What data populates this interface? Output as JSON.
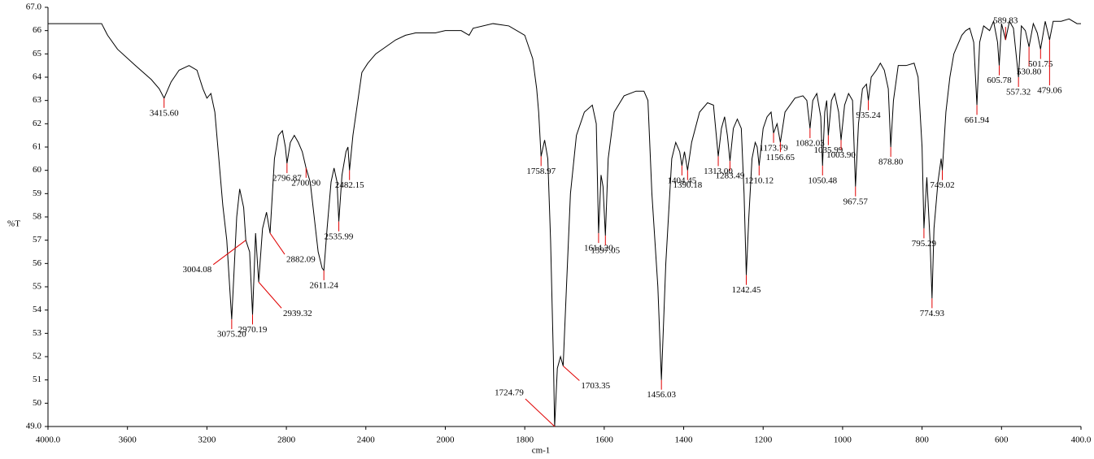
{
  "chart_data": {
    "type": "line",
    "xlabel": "cm-1",
    "ylabel": "%T",
    "color": "#000000",
    "peak_color": "#e00000",
    "xlim": [
      4000,
      400
    ],
    "ylim": [
      49,
      67
    ],
    "xticks": [
      {
        "value": 4000,
        "label": "4000.0"
      },
      3600,
      3200,
      2800,
      2400,
      2000,
      1800,
      1600,
      1400,
      1200,
      1000,
      800,
      600,
      {
        "value": 400,
        "label": "400.0"
      }
    ],
    "yticks": [
      {
        "value": 49,
        "label": "49.0"
      },
      50,
      51,
      52,
      53,
      54,
      55,
      56,
      57,
      58,
      59,
      60,
      61,
      62,
      63,
      64,
      65,
      66,
      {
        "value": 67,
        "label": "67.0"
      }
    ],
    "x": [
      4000,
      3730,
      3700,
      3650,
      3560,
      3480,
      3440,
      3415.6,
      3380,
      3340,
      3290,
      3250,
      3220,
      3200,
      3180,
      3160,
      3140,
      3120,
      3100,
      3075.2,
      3050,
      3035,
      3015,
      3004.08,
      2985,
      2970.19,
      2955,
      2939.32,
      2920,
      2900,
      2882.09,
      2860,
      2840,
      2820,
      2805,
      2796.87,
      2780,
      2760,
      2740,
      2720,
      2700.9,
      2680,
      2660,
      2640,
      2620,
      2611.24,
      2595,
      2575,
      2560,
      2545,
      2535.99,
      2520,
      2500,
      2490,
      2482.15,
      2465,
      2440,
      2420,
      2390,
      2350,
      2300,
      2250,
      2200,
      2150,
      2100,
      2050,
      2000,
      1960,
      1940,
      1930,
      1880,
      1840,
      1800,
      1780,
      1770,
      1765,
      1758.97,
      1750,
      1742,
      1735,
      1728,
      1724.79,
      1718,
      1710,
      1703.35,
      1695,
      1685,
      1670,
      1650,
      1630,
      1620,
      1614.2,
      1608,
      1603,
      1597.05,
      1590,
      1575,
      1550,
      1520,
      1500,
      1490,
      1480,
      1465,
      1456.03,
      1445,
      1430,
      1420,
      1410,
      1404.45,
      1398,
      1390.18,
      1380,
      1360,
      1340,
      1325,
      1313,
      1305,
      1297,
      1290,
      1283.49,
      1275,
      1265,
      1255,
      1248,
      1242.45,
      1236,
      1228,
      1220,
      1215,
      1210.12,
      1200,
      1190,
      1180,
      1173.79,
      1165,
      1156.65,
      1145,
      1120,
      1100,
      1090,
      1082.03,
      1075,
      1065,
      1055,
      1050.48,
      1045,
      1040,
      1035.99,
      1028,
      1020,
      1010,
      1003.9,
      995,
      985,
      975,
      967.57,
      960,
      950,
      940,
      935.24,
      928,
      915,
      905,
      895,
      885,
      878.8,
      872,
      860,
      840,
      820,
      810,
      800,
      795.29,
      788,
      780,
      774.93,
      770,
      760,
      752,
      749.02,
      740,
      730,
      720,
      700,
      690,
      680,
      670,
      661.94,
      655,
      645,
      630,
      620,
      610,
      605.78,
      600,
      589.83,
      580,
      570,
      557.32,
      550,
      540,
      530.8,
      520,
      510,
      501.75,
      490,
      479.06,
      470,
      450,
      430,
      410,
      400
    ],
    "values": [
      66.3,
      66.3,
      65.8,
      65.2,
      64.5,
      63.9,
      63.5,
      63.1,
      63.8,
      64.3,
      64.5,
      64.3,
      63.5,
      63.1,
      63.3,
      62.5,
      60.5,
      58.5,
      57,
      53.6,
      58,
      59.2,
      58.4,
      57,
      56.5,
      53.8,
      57.3,
      55.2,
      57.5,
      58.2,
      57.3,
      60.5,
      61.5,
      61.7,
      61,
      60.3,
      61.2,
      61.5,
      61.2,
      60.8,
      60.1,
      59.5,
      58,
      56.5,
      55.8,
      55.7,
      57.5,
      59.5,
      60.1,
      59.5,
      57.8,
      59.8,
      60.8,
      61,
      60,
      61.5,
      63,
      64.2,
      64.6,
      65,
      65.3,
      65.6,
      65.8,
      65.9,
      65.9,
      65.9,
      66,
      66,
      65.8,
      66.1,
      66.3,
      66.2,
      65.8,
      64.8,
      63.5,
      62.5,
      60.6,
      61.3,
      60.5,
      57,
      52,
      49,
      51.5,
      52,
      51.6,
      55,
      59,
      61.5,
      62.5,
      62.8,
      62,
      57.3,
      59.8,
      59.3,
      57.2,
      60.5,
      62.5,
      63.2,
      63.4,
      63.4,
      63,
      59,
      55,
      51,
      56,
      60.5,
      61.2,
      60.8,
      60.2,
      60.8,
      60,
      61.2,
      62.5,
      62.9,
      62.8,
      60.6,
      61.8,
      62.3,
      61.5,
      60.4,
      61.8,
      62.2,
      61.8,
      59,
      55.5,
      58,
      60.5,
      61.2,
      61,
      60.2,
      61.8,
      62.3,
      62.5,
      61.6,
      62,
      61.2,
      62.5,
      63.1,
      63.2,
      63,
      61.8,
      63,
      63.3,
      62.3,
      60.2,
      62.5,
      63,
      61.5,
      63,
      63.3,
      62.5,
      61.3,
      62.8,
      63.3,
      63,
      59.3,
      62,
      63.5,
      63.7,
      63,
      64,
      64.3,
      64.6,
      64.3,
      63.5,
      61,
      63,
      64.5,
      64.5,
      64.6,
      64,
      61,
      57.5,
      59.7,
      57,
      54.5,
      57.5,
      59.5,
      60.5,
      60,
      62.5,
      64,
      65,
      65.8,
      66,
      66.1,
      65.5,
      62.8,
      65.5,
      66.2,
      66,
      66.4,
      65.5,
      64.5,
      66.3,
      65.6,
      66.4,
      66.1,
      64,
      66.2,
      66,
      65.3,
      66.3,
      65.9,
      65.2,
      66.4,
      65.6,
      66.4,
      66.4,
      66.5,
      66.3,
      66.3
    ],
    "peaks": {
      "x": [
        3415.6,
        3075.2,
        3004.08,
        2970.19,
        2939.32,
        2882.09,
        2796.87,
        2700.9,
        2611.24,
        2535.99,
        2482.15,
        1758.97,
        1724.79,
        1703.35,
        1614.2,
        1597.05,
        1456.03,
        1404.45,
        1390.18,
        1313,
        1283.49,
        1242.45,
        1210.12,
        1173.79,
        1156.65,
        1082.03,
        1050.48,
        1035.99,
        1003.9,
        967.57,
        935.24,
        878.8,
        795.29,
        774.93,
        749.02,
        661.94,
        605.78,
        589.83,
        557.32,
        530.8,
        501.75,
        479.06
      ],
      "labels": [
        "3415.60",
        "3075.20",
        "3004.08",
        "2970.19",
        "2939.32",
        "2882.09",
        "2796.87",
        "2700.90",
        "2611.24",
        "2535.99",
        "2482.15",
        "1758.97",
        "1724.79",
        "1703.35",
        "1614.20",
        "1597.05",
        "1456.03",
        "1404.45",
        "1390.18",
        "1313.00",
        "1283.49",
        "1242.45",
        "1210.12",
        "1173.79",
        "1156.65",
        "1082.03",
        "1050.48",
        "1035.99",
        "1003.90",
        "967.57",
        "935.24",
        "878.80",
        "795.29",
        "774.93",
        "749.02",
        "661.94",
        "605.78",
        "589.83",
        "557.32",
        "530.80",
        "501.75",
        "479.06"
      ]
    }
  }
}
